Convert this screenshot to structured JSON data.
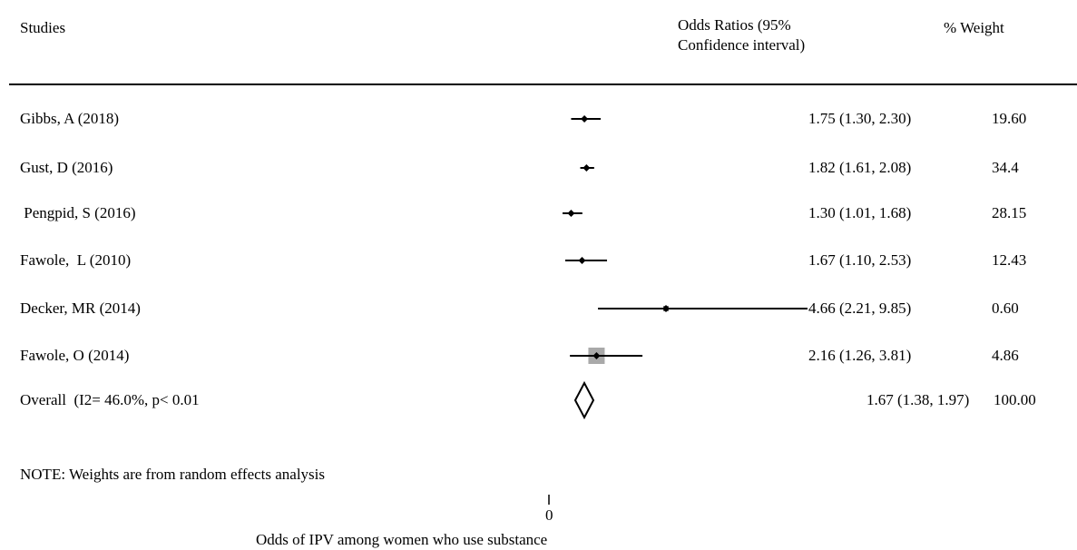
{
  "chart_data": {
    "type": "forest",
    "headers": {
      "studies": "Studies",
      "or_line1": "Odds Ratios (95%",
      "or_line2": "Confidence interval)",
      "weight": "% Weight"
    },
    "studies": [
      {
        "label": "Gibbs, A (2018)",
        "or": 1.75,
        "ci": [
          1.3,
          2.3
        ],
        "or_text": "1.75 (1.30, 2.30)",
        "weight": 19.6,
        "weight_text": "19.60"
      },
      {
        "label": "Gust, D (2016)",
        "or": 1.82,
        "ci": [
          1.61,
          2.08
        ],
        "or_text": "1.82 (1.61, 2.08)",
        "weight": 34.4,
        "weight_text": "34.4"
      },
      {
        "label": " Pengpid, S (2016)",
        "or": 1.3,
        "ci": [
          1.01,
          1.68
        ],
        "or_text": "1.30 (1.01, 1.68)",
        "weight": 28.15,
        "weight_text": "28.15"
      },
      {
        "label": "Fawole,  L (2010)",
        "or": 1.67,
        "ci": [
          1.1,
          2.53
        ],
        "or_text": "1.67 (1.10, 2.53)",
        "weight": 12.43,
        "weight_text": "12.43"
      },
      {
        "label": "Decker, MR (2014)",
        "or": 4.66,
        "ci": [
          2.21,
          9.85
        ],
        "or_text": "4.66 (2.21, 9.85)",
        "weight": 0.6,
        "weight_text": "0.60"
      },
      {
        "label": "Fawole, O (2014)",
        "or": 2.16,
        "ci": [
          1.26,
          3.81
        ],
        "or_text": "2.16 (1.26, 3.81)",
        "weight": 4.86,
        "weight_text": "4.86"
      }
    ],
    "overall": {
      "label": "Overall  (I2= 46.0%, p< 0.01",
      "or": 1.67,
      "ci": [
        1.38,
        1.97
      ],
      "or_text": "1.67 (1.38, 1.97)",
      "weight_text": "100.00"
    },
    "note": "NOTE: Weights are from random effects analysis",
    "axis_tick": "0",
    "xlabel": "Odds of IPV among women who use substance",
    "colors": {
      "weight_box": "#a9a9a9",
      "line": "#000000",
      "marker": "#000000"
    }
  }
}
